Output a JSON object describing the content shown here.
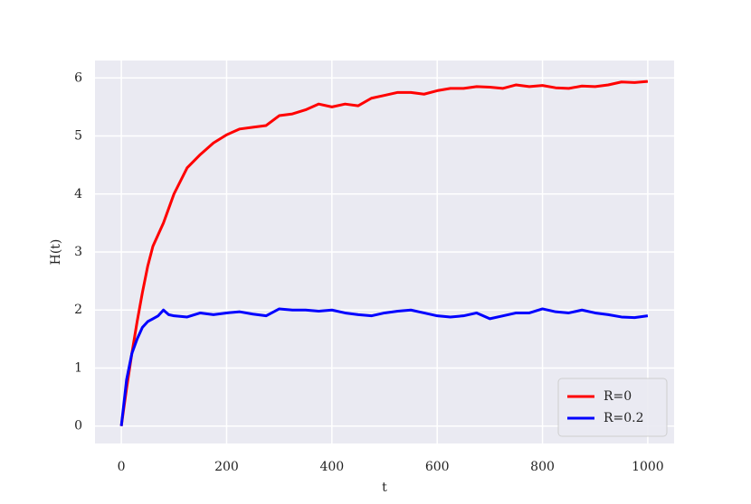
{
  "chart_data": {
    "type": "line",
    "x": [
      0,
      10,
      20,
      30,
      40,
      50,
      60,
      70,
      80,
      90,
      100,
      125,
      150,
      175,
      200,
      225,
      250,
      275,
      300,
      325,
      350,
      375,
      400,
      425,
      450,
      475,
      500,
      525,
      550,
      575,
      600,
      625,
      650,
      675,
      700,
      725,
      750,
      775,
      800,
      825,
      850,
      875,
      900,
      925,
      950,
      975,
      1000
    ],
    "series": [
      {
        "name": "R=0",
        "color": "#ff0000",
        "values": [
          0,
          0.65,
          1.25,
          1.8,
          2.3,
          2.75,
          3.1,
          3.3,
          3.5,
          3.75,
          4.0,
          4.45,
          4.68,
          4.88,
          5.02,
          5.12,
          5.15,
          5.18,
          5.35,
          5.38,
          5.45,
          5.55,
          5.5,
          5.55,
          5.52,
          5.65,
          5.7,
          5.75,
          5.75,
          5.72,
          5.78,
          5.82,
          5.82,
          5.85,
          5.84,
          5.82,
          5.88,
          5.85,
          5.87,
          5.83,
          5.82,
          5.86,
          5.85,
          5.88,
          5.93,
          5.92,
          5.94
        ]
      },
      {
        "name": "R=0.2",
        "color": "#0000ff",
        "values": [
          0,
          0.8,
          1.25,
          1.5,
          1.7,
          1.8,
          1.85,
          1.9,
          2.0,
          1.92,
          1.9,
          1.88,
          1.95,
          1.92,
          1.95,
          1.97,
          1.93,
          1.9,
          2.02,
          2.0,
          2.0,
          1.98,
          2.0,
          1.95,
          1.92,
          1.9,
          1.95,
          1.98,
          2.0,
          1.95,
          1.9,
          1.88,
          1.9,
          1.95,
          1.85,
          1.9,
          1.95,
          1.95,
          2.02,
          1.97,
          1.95,
          2.0,
          1.95,
          1.92,
          1.88,
          1.87,
          1.9
        ]
      }
    ],
    "x_label": "t",
    "y_label": "H(t)",
    "xlim": [
      -50,
      1050
    ],
    "ylim": [
      -0.3,
      6.3
    ],
    "xticks": [
      0,
      200,
      400,
      600,
      800,
      1000
    ],
    "yticks": [
      0,
      1,
      2,
      3,
      4,
      5,
      6
    ],
    "grid": true,
    "legend": "lower right"
  }
}
